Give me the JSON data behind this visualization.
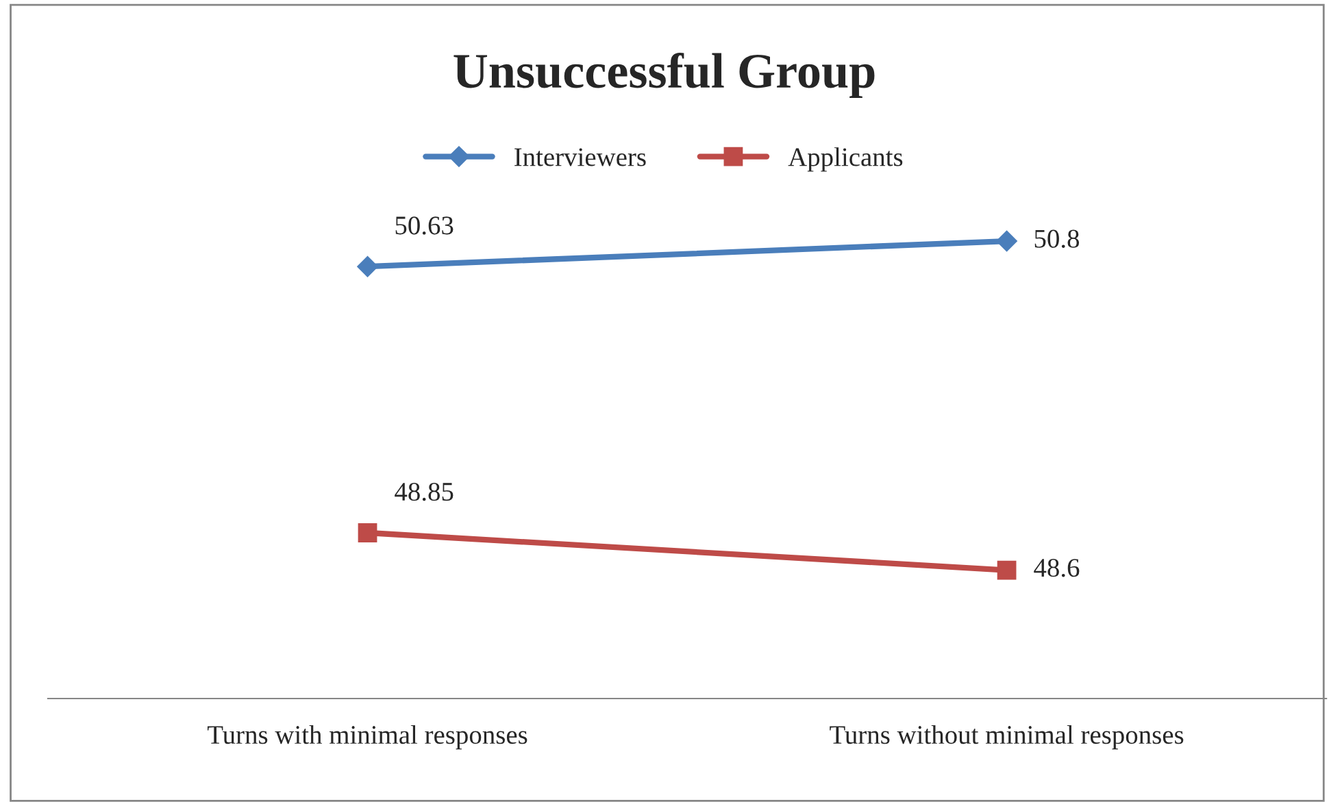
{
  "chart_data": {
    "type": "line",
    "title": "Unsuccessful Group",
    "categories": [
      "Turns with minimal responses",
      "Turns without minimal responses"
    ],
    "series": [
      {
        "name": "Interviewers",
        "color": "#4a7ebb",
        "values": [
          50.63,
          50.8
        ],
        "marker": "diamond"
      },
      {
        "name": "Applicants",
        "color": "#be4b48",
        "values": [
          48.85,
          48.6
        ],
        "marker": "square"
      }
    ],
    "data_labels": true,
    "legend": "top",
    "grid": false,
    "line_style": "solid"
  }
}
